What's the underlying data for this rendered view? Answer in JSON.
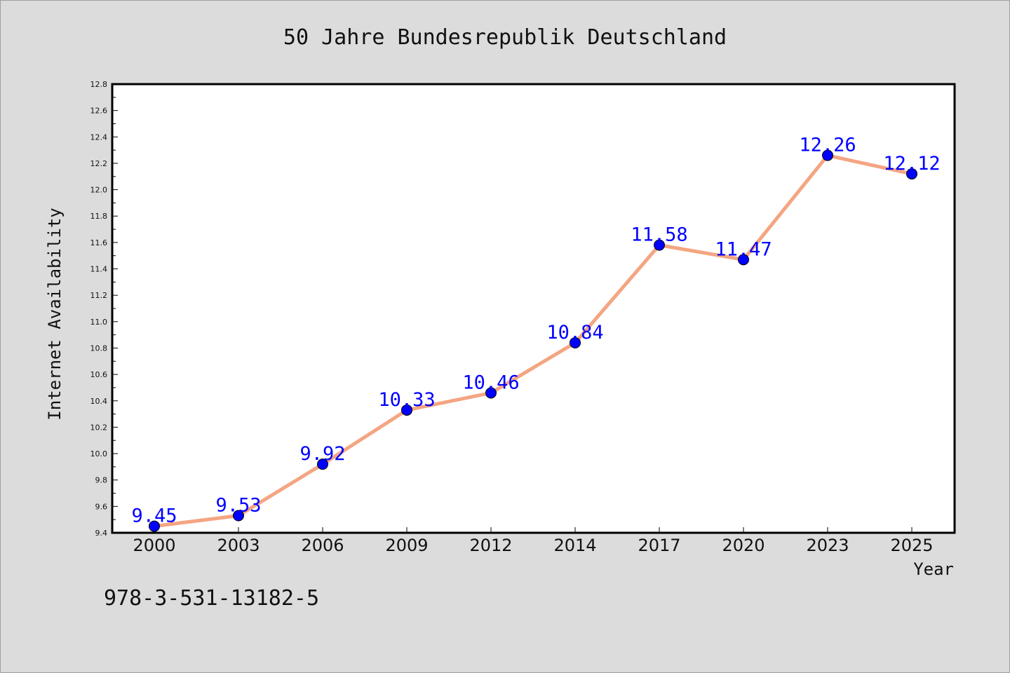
{
  "chart_data": {
    "type": "line",
    "title": "50 Jahre Bundesrepublik Deutschland",
    "xlabel": "Year",
    "ylabel": "Internet Availability",
    "categories": [
      "2000",
      "2003",
      "2006",
      "2009",
      "2012",
      "2014",
      "2017",
      "2020",
      "2023",
      "2025"
    ],
    "series": [
      {
        "values": [
          9.45,
          9.53,
          9.92,
          10.33,
          10.46,
          10.84,
          11.58,
          11.47,
          12.26,
          12.12
        ]
      }
    ],
    "data_labels": [
      "9.45",
      "9.53",
      "9.92",
      "10.33",
      "10.46",
      "10.84",
      "11.58",
      "11.47",
      "12.26",
      "12.12"
    ],
    "ylim": [
      9.4,
      12.8
    ],
    "yticks": [
      "9.4",
      "9.6",
      "9.8",
      "10.0",
      "10.2",
      "10.4",
      "10.6",
      "10.8",
      "11.0",
      "11.2",
      "11.4",
      "11.6",
      "11.8",
      "12.0",
      "12.2",
      "12.4",
      "12.6",
      "12.8"
    ],
    "grid": false,
    "legend": "none",
    "colors": {
      "line": "#f4a582",
      "marker": "#0000ff",
      "label": "#0000ff",
      "background": "#dcdcdc",
      "plot_background": "#ffffff"
    }
  },
  "footer": {
    "isbn": "978-3-531-13182-5"
  }
}
